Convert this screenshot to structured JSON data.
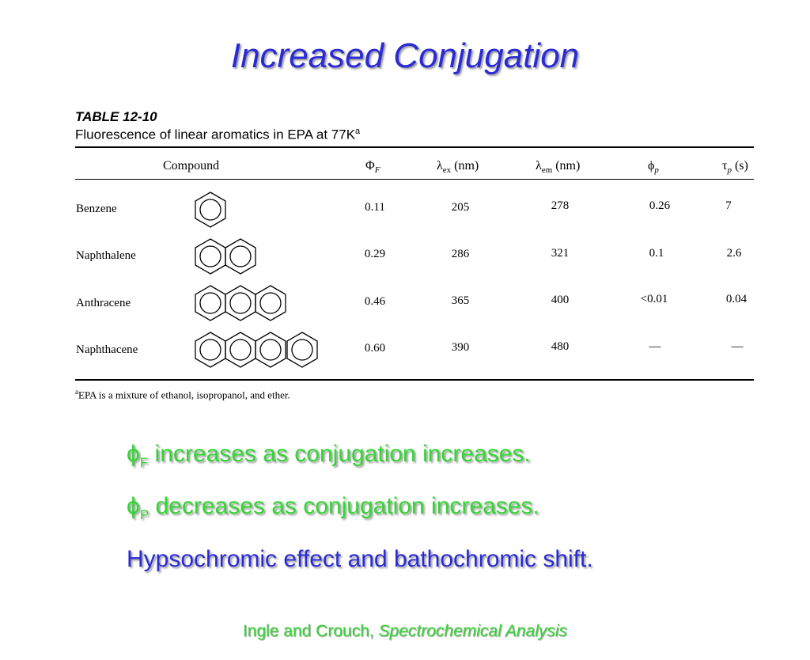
{
  "title": "Increased Conjugation",
  "table": {
    "label": "TABLE 12-10",
    "caption": "Fluorescence of linear aromatics in EPA at 77K",
    "caption_sup": "a",
    "headers": {
      "compound": "Compound",
      "phi_f_sym": "Φ",
      "phi_f_sub": "F",
      "lambda_ex_sym": "λ",
      "lambda_ex_sub": "ex",
      "lambda_ex_unit": "(nm)",
      "lambda_em_sym": "λ",
      "lambda_em_sub": "em",
      "lambda_em_unit": "(nm)",
      "phi_p_sym": "ϕ",
      "phi_p_sub": "p",
      "tau_p_sym": "τ",
      "tau_p_sub": "p",
      "tau_p_unit": "(s)"
    },
    "rows": [
      {
        "compound": "Benzene",
        "rings": 1,
        "phi_f": "0.11",
        "lambda_ex": "205",
        "lambda_em": "278",
        "phi_p": "0.26",
        "tau_p": "7"
      },
      {
        "compound": "Naphthalene",
        "rings": 2,
        "phi_f": "0.29",
        "lambda_ex": "286",
        "lambda_em": "321",
        "phi_p": "0.1",
        "tau_p": "2.6"
      },
      {
        "compound": "Anthracene",
        "rings": 3,
        "phi_f": "0.46",
        "lambda_ex": "365",
        "lambda_em": "400",
        "phi_p": "<0.01",
        "tau_p": "0.04"
      },
      {
        "compound": "Naphthacene",
        "rings": 4,
        "phi_f": "0.60",
        "lambda_ex": "390",
        "lambda_em": "480",
        "phi_p": "—",
        "tau_p": "—"
      }
    ],
    "footnote_sup": "a",
    "footnote": "EPA is a mixture of ethanol, isopropanol, and ether."
  },
  "bullets": [
    {
      "sym": "ϕ",
      "sub": "F",
      "text": " increases as conjugation increases."
    },
    {
      "sym": "ϕ",
      "sub": "P",
      "text": " decreases as conjugation increases."
    },
    {
      "text": "Hypsochromic effect and bathochromic shift."
    }
  ],
  "citation": {
    "authors": "Ingle and Crouch, ",
    "book": "Spectrochemical Analysis"
  },
  "colors": {
    "title_blue": "#2b2bd6",
    "bullet_green": "#33d633"
  }
}
